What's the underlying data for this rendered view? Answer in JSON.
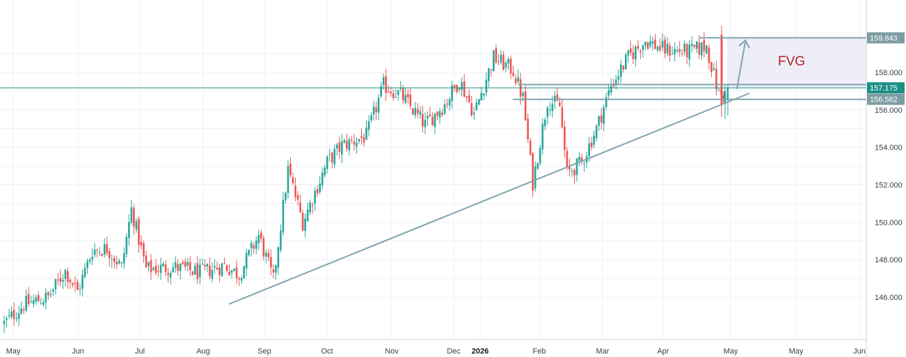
{
  "chart_data": {
    "type": "candlestick",
    "y_axis": {
      "range": [
        144.0,
        162.0
      ],
      "ticks": [
        "146.000",
        "148.000",
        "150.000",
        "152.000",
        "154.000",
        "156.000",
        "158.000"
      ],
      "tick_values": [
        146,
        148,
        150,
        152,
        154,
        156,
        158
      ]
    },
    "x_axis": {
      "labels": [
        "May",
        "Jun",
        "Jul",
        "Aug",
        "Sep",
        "Oct",
        "Nov",
        "Dec",
        "2026",
        "Feb",
        "Mar",
        "Apr",
        "May",
        "May",
        "Jun"
      ],
      "bold_label": "2026"
    },
    "grid": true,
    "colors": {
      "up": "#26a69a",
      "down": "#ef5350",
      "drawing": "#7fa3ad",
      "horizontal_line": "#1c8f86",
      "fvg_fill": "#eeedf8",
      "fvg_text": "#b22222",
      "tag_bg": "#7f9ca3",
      "tag_bg_dark": "#1c8f86"
    },
    "price_tags": [
      "159.843",
      "157.175",
      "156.562"
    ],
    "price_levels": [
      159.843,
      157.175,
      156.562
    ],
    "annotation": "FVG",
    "waypoints": [
      [
        0,
        144.6
      ],
      [
        8,
        145.6
      ],
      [
        18,
        146.0
      ],
      [
        25,
        147.4
      ],
      [
        30,
        146.3
      ],
      [
        36,
        148.5
      ],
      [
        42,
        148.6
      ],
      [
        48,
        147.6
      ],
      [
        52,
        150.7
      ],
      [
        58,
        147.5
      ],
      [
        70,
        147.6
      ],
      [
        80,
        147.3
      ],
      [
        90,
        147.7
      ],
      [
        96,
        147.2
      ],
      [
        104,
        149.3
      ],
      [
        110,
        146.9
      ],
      [
        116,
        152.8
      ],
      [
        122,
        150.0
      ],
      [
        132,
        153.2
      ],
      [
        138,
        154.1
      ],
      [
        148,
        154.6
      ],
      [
        155,
        157.3
      ],
      [
        162,
        156.8
      ],
      [
        172,
        155.2
      ],
      [
        180,
        156.3
      ],
      [
        186,
        157.6
      ],
      [
        192,
        155.8
      ],
      [
        200,
        158.8
      ],
      [
        208,
        158.1
      ],
      [
        212,
        156.6
      ],
      [
        216,
        152.1
      ],
      [
        222,
        156.5
      ],
      [
        227,
        156.2
      ],
      [
        230,
        152.6
      ],
      [
        236,
        153.2
      ],
      [
        242,
        155.0
      ],
      [
        248,
        157.3
      ],
      [
        255,
        158.8
      ],
      [
        262,
        159.7
      ],
      [
        270,
        159.2
      ],
      [
        280,
        159.1
      ],
      [
        287,
        159.4
      ],
      [
        292,
        156.8
      ]
    ]
  }
}
